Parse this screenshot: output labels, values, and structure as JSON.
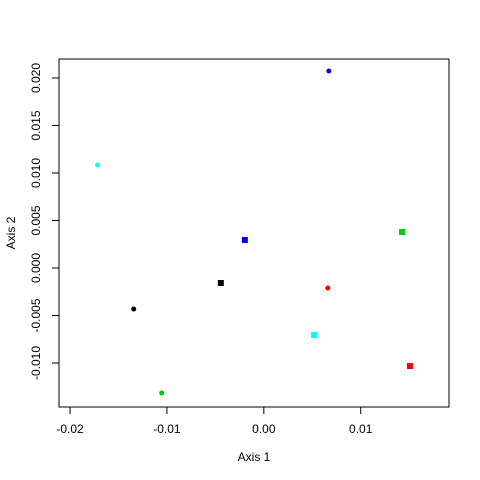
{
  "chart_data": {
    "type": "scatter",
    "x_label": "Axis 1",
    "y_label": "Axis 2",
    "xlim": [
      -0.02114,
      0.01911
    ],
    "ylim": [
      -0.01463,
      0.022
    ],
    "xticks": [
      -0.02,
      -0.01,
      {
        "value": 0,
        "label": "0.00"
      },
      0.01
    ],
    "yticks": [
      {
        "value": -0.01,
        "label": "-0.010"
      },
      {
        "value": -0.005,
        "label": "-0.005"
      },
      {
        "value": 0,
        "label": "0.000"
      },
      {
        "value": 0.005,
        "label": "0.005"
      },
      {
        "value": 0.01,
        "label": "0.010"
      },
      {
        "value": 0.015,
        "label": "0.015"
      },
      {
        "value": 0.02,
        "label": "0.020"
      }
    ],
    "grid": false,
    "series": [
      {
        "marker": "circle",
        "colors": [
          "#0000ff",
          "#00ffff",
          "#000000",
          "#ff0000",
          "#00cd00"
        ],
        "x": [
          0.00671,
          -0.01715,
          -0.01343,
          0.00661,
          -0.01054
        ],
        "values": [
          0.02074,
          0.01084,
          -0.00432,
          -0.00211,
          -0.01316
        ]
      },
      {
        "marker": "square",
        "colors": [
          "#0000ff",
          "#00cd00",
          "#000000",
          "#00ffff",
          "#ff0000"
        ],
        "x": [
          -0.00196,
          0.01426,
          -0.00444,
          0.00517,
          0.01508
        ],
        "values": [
          0.00295,
          0.00379,
          -0.00158,
          -0.00705,
          -0.01032
        ]
      }
    ]
  }
}
